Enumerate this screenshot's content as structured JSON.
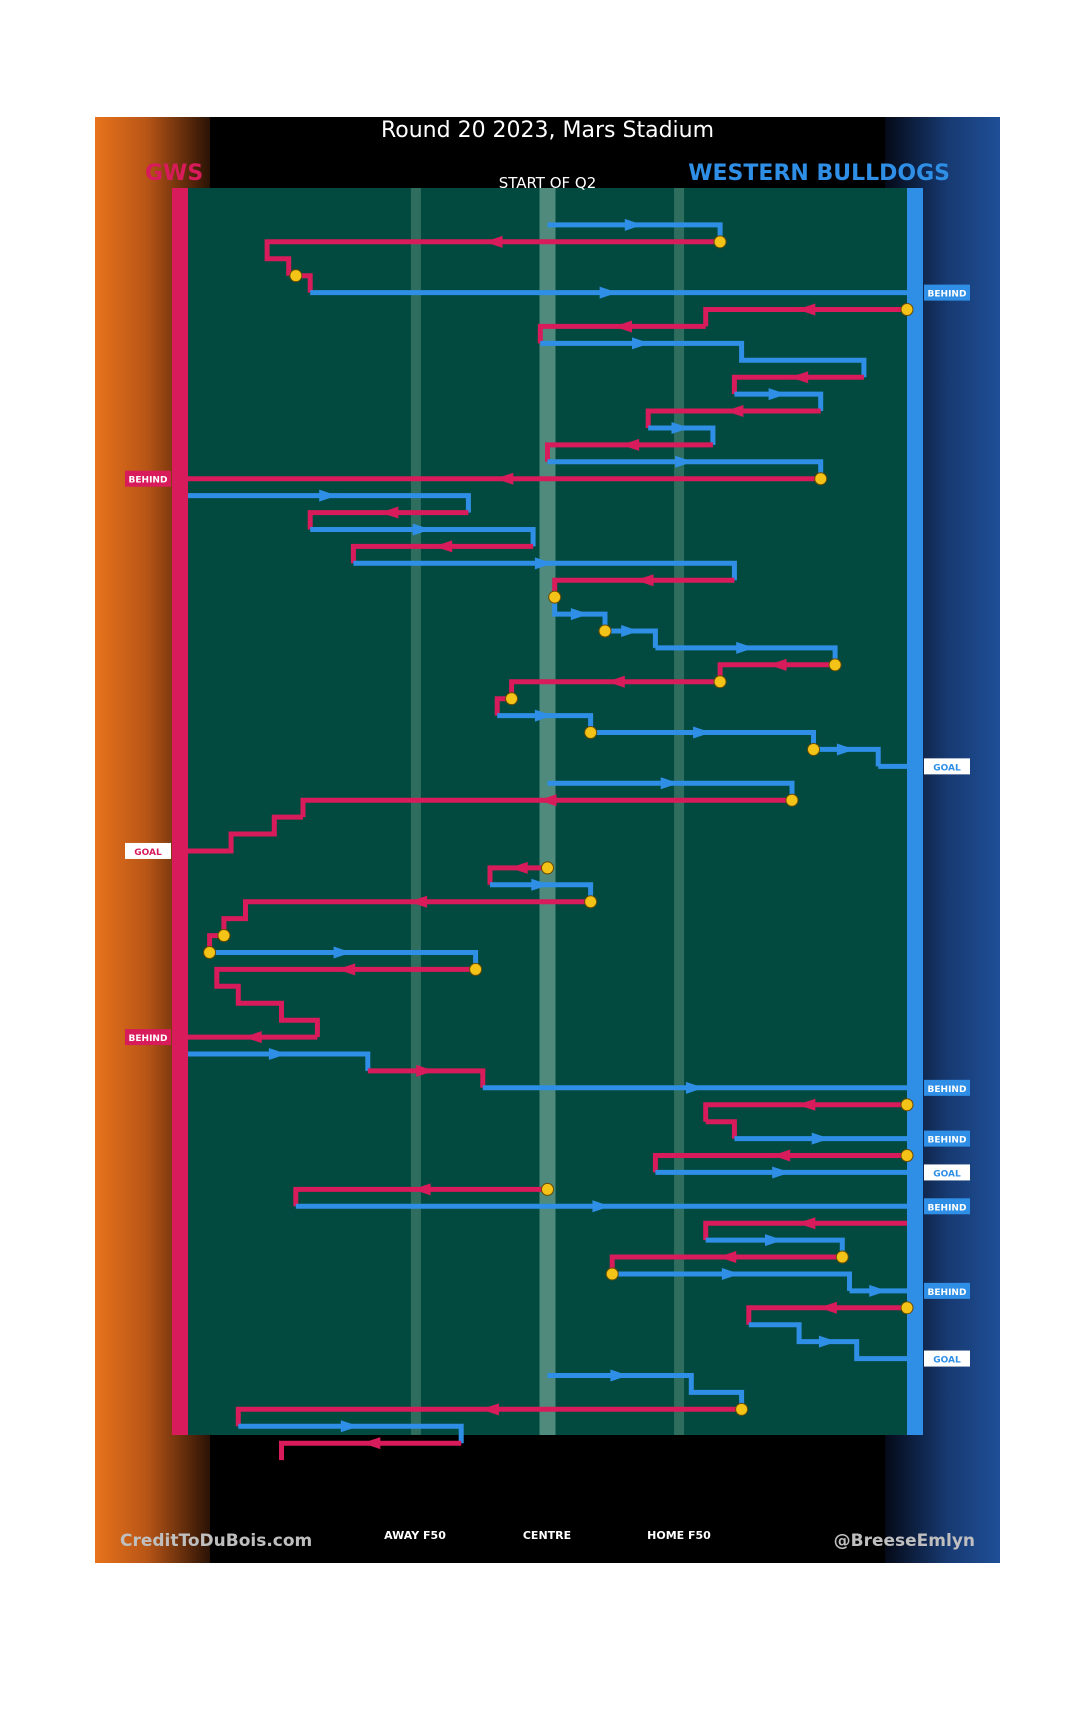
{
  "header": {
    "title": "Round 20 2023, Mars Stadium",
    "team_left": "GWS",
    "team_right": "WESTERN BULLDOGS",
    "period_label": "START OF Q2"
  },
  "zones": [
    "AWAY F50",
    "CENTRE",
    "HOME F50"
  ],
  "credits": {
    "left": "CreditToDuBois.com",
    "right": "@BreeseEmlyn"
  },
  "colors": {
    "gws": "#d81b5a",
    "bulldogs": "#2f8fe6",
    "ground": "#024a3f",
    "marker": "#f3c317",
    "left_bg": "#e8731c",
    "right_bg": "#1f4f97"
  },
  "chart_data": {
    "type": "line",
    "title": "Round 20 2023, Mars Stadium",
    "subtitle": "START OF Q2",
    "x_axis_labels": [
      "AWAY F50",
      "CENTRE",
      "HOME F50"
    ],
    "legend": [
      "GWS",
      "WESTERN BULLDOGS"
    ],
    "teams": {
      "gws": "GWS",
      "bulldogs": "WESTERN BULLDOGS"
    },
    "outcome_labels": {
      "goal": "GOAL",
      "behind": "BEHIND"
    },
    "chains": [
      {
        "team": "bulldogs",
        "start": [
          0.5,
          1
        ],
        "path": [
          [
            0.74,
            1
          ],
          [
            0.74,
            2
          ]
        ]
      },
      {
        "team": "gws",
        "start": [
          0.74,
          2
        ],
        "path": [
          [
            0.11,
            2
          ],
          [
            0.11,
            3
          ],
          [
            0.14,
            3
          ],
          [
            0.14,
            4
          ]
        ],
        "turnover": true
      },
      {
        "team": "gws",
        "start": [
          0.15,
          4
        ],
        "path": [
          [
            0.17,
            4
          ],
          [
            0.17,
            5
          ]
        ],
        "turnover": true
      },
      {
        "team": "bulldogs",
        "start": [
          0.17,
          5
        ],
        "path": [
          [
            1,
            5
          ]
        ],
        "outcome": "behind"
      },
      {
        "team": "gws",
        "start": [
          1,
          6
        ],
        "path": [
          [
            0.72,
            6
          ],
          [
            0.72,
            7
          ]
        ],
        "turnover": true
      },
      {
        "team": "gws",
        "start": [
          0.72,
          7
        ],
        "path": [
          [
            0.49,
            7
          ],
          [
            0.49,
            8
          ]
        ]
      },
      {
        "team": "bulldogs",
        "start": [
          0.49,
          8
        ],
        "path": [
          [
            0.77,
            8
          ],
          [
            0.77,
            9
          ],
          [
            0.94,
            9
          ],
          [
            0.94,
            10
          ]
        ]
      },
      {
        "team": "gws",
        "start": [
          0.94,
          10
        ],
        "path": [
          [
            0.76,
            10
          ],
          [
            0.76,
            11
          ]
        ]
      },
      {
        "team": "bulldogs",
        "start": [
          0.76,
          11
        ],
        "path": [
          [
            0.88,
            11
          ],
          [
            0.88,
            12
          ]
        ]
      },
      {
        "team": "gws",
        "start": [
          0.88,
          12
        ],
        "path": [
          [
            0.64,
            12
          ],
          [
            0.64,
            13
          ]
        ]
      },
      {
        "team": "bulldogs",
        "start": [
          0.64,
          13
        ],
        "path": [
          [
            0.73,
            13
          ],
          [
            0.73,
            14
          ]
        ]
      },
      {
        "team": "gws",
        "start": [
          0.73,
          14
        ],
        "path": [
          [
            0.5,
            14
          ],
          [
            0.5,
            15
          ]
        ]
      },
      {
        "team": "bulldogs",
        "start": [
          0.5,
          15
        ],
        "path": [
          [
            0.88,
            15
          ],
          [
            0.88,
            16
          ]
        ]
      },
      {
        "team": "gws",
        "start": [
          0.88,
          16
        ],
        "path": [
          [
            0,
            16
          ]
        ],
        "turnover": true,
        "outcome": "behind"
      },
      {
        "team": "bulldogs",
        "start": [
          0,
          17
        ],
        "path": [
          [
            0.39,
            17
          ],
          [
            0.39,
            18
          ]
        ]
      },
      {
        "team": "gws",
        "start": [
          0.39,
          18
        ],
        "path": [
          [
            0.17,
            18
          ],
          [
            0.17,
            19
          ]
        ]
      },
      {
        "team": "bulldogs",
        "start": [
          0.17,
          19
        ],
        "path": [
          [
            0.48,
            19
          ],
          [
            0.48,
            20
          ]
        ]
      },
      {
        "team": "gws",
        "start": [
          0.48,
          20
        ],
        "path": [
          [
            0.23,
            20
          ],
          [
            0.23,
            21
          ]
        ]
      },
      {
        "team": "bulldogs",
        "start": [
          0.23,
          21
        ],
        "path": [
          [
            0.76,
            21
          ],
          [
            0.76,
            22
          ]
        ]
      },
      {
        "team": "gws",
        "start": [
          0.76,
          22
        ],
        "path": [
          [
            0.51,
            22
          ],
          [
            0.51,
            23
          ]
        ]
      },
      {
        "team": "bulldogs",
        "start": [
          0.51,
          23
        ],
        "path": [
          [
            0.51,
            24
          ],
          [
            0.58,
            24
          ],
          [
            0.58,
            25
          ]
        ],
        "turnover": true
      },
      {
        "team": "bulldogs",
        "start": [
          0.58,
          25
        ],
        "path": [
          [
            0.65,
            25
          ],
          [
            0.65,
            26
          ]
        ],
        "turnover": true
      },
      {
        "team": "bulldogs",
        "start": [
          0.65,
          26
        ],
        "path": [
          [
            0.9,
            26
          ],
          [
            0.9,
            27
          ]
        ]
      },
      {
        "team": "gws",
        "start": [
          0.9,
          27
        ],
        "path": [
          [
            0.74,
            27
          ],
          [
            0.74,
            28
          ]
        ],
        "turnover": true
      },
      {
        "team": "gws",
        "start": [
          0.74,
          28
        ],
        "path": [
          [
            0.45,
            28
          ],
          [
            0.45,
            29
          ]
        ],
        "turnover": true
      },
      {
        "team": "gws",
        "start": [
          0.45,
          29
        ],
        "path": [
          [
            0.43,
            29
          ],
          [
            0.43,
            30
          ]
        ],
        "turnover": true
      },
      {
        "team": "bulldogs",
        "start": [
          0.43,
          30
        ],
        "path": [
          [
            0.56,
            30
          ],
          [
            0.56,
            31
          ]
        ]
      },
      {
        "team": "bulldogs",
        "start": [
          0.56,
          31
        ],
        "path": [
          [
            0.87,
            31
          ],
          [
            0.87,
            32
          ]
        ],
        "turnover": true
      },
      {
        "team": "bulldogs",
        "start": [
          0.87,
          32
        ],
        "path": [
          [
            0.96,
            32
          ],
          [
            0.96,
            33
          ]
        ],
        "turnover": true
      },
      {
        "team": "bulldogs",
        "start": [
          0.96,
          33
        ],
        "path": [
          [
            1,
            33
          ]
        ],
        "outcome": "goal"
      },
      {
        "team": "bulldogs",
        "start": [
          0.5,
          34
        ],
        "path": [
          [
            0.84,
            34
          ],
          [
            0.84,
            35
          ]
        ]
      },
      {
        "team": "gws",
        "start": [
          0.84,
          35
        ],
        "path": [
          [
            0.16,
            35
          ],
          [
            0.16,
            36
          ]
        ],
        "turnover": true
      },
      {
        "team": "gws",
        "start": [
          0.16,
          36
        ],
        "path": [
          [
            0.12,
            36
          ],
          [
            0.12,
            37
          ],
          [
            0.06,
            37
          ],
          [
            0.06,
            38
          ],
          [
            0,
            38
          ]
        ],
        "outcome": "goal"
      },
      {
        "team": "gws",
        "start": [
          0.5,
          39
        ],
        "path": [
          [
            0.42,
            39
          ],
          [
            0.42,
            40
          ]
        ],
        "turnover": true
      },
      {
        "team": "bulldogs",
        "start": [
          0.42,
          40
        ],
        "path": [
          [
            0.56,
            40
          ],
          [
            0.56,
            41
          ]
        ]
      },
      {
        "team": "gws",
        "start": [
          0.56,
          41
        ],
        "path": [
          [
            0.08,
            41
          ],
          [
            0.08,
            42
          ],
          [
            0.05,
            42
          ],
          [
            0.05,
            43
          ]
        ],
        "turnover": true
      },
      {
        "team": "gws",
        "start": [
          0.05,
          43
        ],
        "path": [
          [
            0.03,
            43
          ],
          [
            0.03,
            44
          ]
        ],
        "turnover": true
      },
      {
        "team": "bulldogs",
        "start": [
          0.03,
          44
        ],
        "path": [
          [
            0.4,
            44
          ],
          [
            0.4,
            45
          ]
        ],
        "turnover": true
      },
      {
        "team": "gws",
        "start": [
          0.4,
          45
        ],
        "path": [
          [
            0.04,
            45
          ],
          [
            0.04,
            46
          ],
          [
            0.07,
            46
          ],
          [
            0.07,
            47
          ],
          [
            0.13,
            47
          ],
          [
            0.13,
            48
          ],
          [
            0.18,
            48
          ],
          [
            0.18,
            49
          ]
        ],
        "turnover": true
      },
      {
        "team": "gws",
        "start": [
          0.18,
          49
        ],
        "path": [
          [
            0,
            49
          ]
        ],
        "outcome": "behind"
      },
      {
        "team": "bulldogs",
        "start": [
          0,
          50
        ],
        "path": [
          [
            0.25,
            50
          ],
          [
            0.25,
            51
          ]
        ]
      },
      {
        "team": "gws",
        "start": [
          0.25,
          51
        ],
        "path": [
          [
            0.41,
            51
          ],
          [
            0.41,
            52
          ]
        ]
      },
      {
        "team": "bulldogs",
        "start": [
          0.41,
          52
        ],
        "path": [
          [
            1,
            52
          ]
        ],
        "outcome": "behind"
      },
      {
        "team": "gws",
        "start": [
          1,
          53
        ],
        "path": [
          [
            0.72,
            53
          ],
          [
            0.72,
            54
          ]
        ],
        "turnover": true
      },
      {
        "team": "gws",
        "start": [
          0.72,
          54
        ],
        "path": [
          [
            0.76,
            54
          ],
          [
            0.76,
            55
          ]
        ]
      },
      {
        "team": "bulldogs",
        "start": [
          0.76,
          55
        ],
        "path": [
          [
            1,
            55
          ]
        ],
        "outcome": "behind"
      },
      {
        "team": "gws",
        "start": [
          1,
          56
        ],
        "path": [
          [
            0.65,
            56
          ],
          [
            0.65,
            57
          ]
        ],
        "turnover": true
      },
      {
        "team": "bulldogs",
        "start": [
          0.65,
          57
        ],
        "path": [
          [
            1,
            57
          ]
        ],
        "outcome": "goal"
      },
      {
        "team": "gws",
        "start": [
          0.5,
          58
        ],
        "path": [
          [
            0.15,
            58
          ],
          [
            0.15,
            59
          ]
        ],
        "turnover": true
      },
      {
        "team": "bulldogs",
        "start": [
          0.15,
          59
        ],
        "path": [
          [
            1,
            59
          ]
        ],
        "outcome": "behind"
      },
      {
        "team": "gws",
        "start": [
          1,
          60
        ],
        "path": [
          [
            0.72,
            60
          ],
          [
            0.72,
            61
          ]
        ]
      },
      {
        "team": "bulldogs",
        "start": [
          0.72,
          61
        ],
        "path": [
          [
            0.91,
            61
          ],
          [
            0.91,
            62
          ]
        ]
      },
      {
        "team": "gws",
        "start": [
          0.91,
          62
        ],
        "path": [
          [
            0.59,
            62
          ],
          [
            0.59,
            63
          ]
        ],
        "turnover": true
      },
      {
        "team": "bulldogs",
        "start": [
          0.59,
          63
        ],
        "path": [
          [
            0.92,
            63
          ],
          [
            0.92,
            64
          ]
        ],
        "turnover": true
      },
      {
        "team": "bulldogs",
        "start": [
          0.92,
          64
        ],
        "path": [
          [
            1,
            64
          ]
        ],
        "outcome": "behind"
      },
      {
        "team": "gws",
        "start": [
          1,
          65
        ],
        "path": [
          [
            0.78,
            65
          ],
          [
            0.78,
            66
          ]
        ],
        "turnover": true
      },
      {
        "team": "bulldogs",
        "start": [
          0.78,
          66
        ],
        "path": [
          [
            0.85,
            66
          ],
          [
            0.85,
            67
          ],
          [
            0.93,
            67
          ],
          [
            0.93,
            68
          ],
          [
            1,
            68
          ]
        ],
        "outcome": "goal"
      },
      {
        "team": "bulldogs",
        "start": [
          0.5,
          69
        ],
        "path": [
          [
            0.7,
            69
          ],
          [
            0.7,
            70
          ],
          [
            0.77,
            70
          ],
          [
            0.77,
            71
          ]
        ]
      },
      {
        "team": "gws",
        "start": [
          0.77,
          71
        ],
        "path": [
          [
            0.07,
            71
          ],
          [
            0.07,
            72
          ]
        ],
        "turnover": true
      },
      {
        "team": "bulldogs",
        "start": [
          0.07,
          72
        ],
        "path": [
          [
            0.38,
            72
          ],
          [
            0.38,
            73
          ]
        ]
      },
      {
        "team": "gws",
        "start": [
          0.38,
          73
        ],
        "path": [
          [
            0.13,
            73
          ],
          [
            0.13,
            74
          ]
        ]
      }
    ]
  }
}
